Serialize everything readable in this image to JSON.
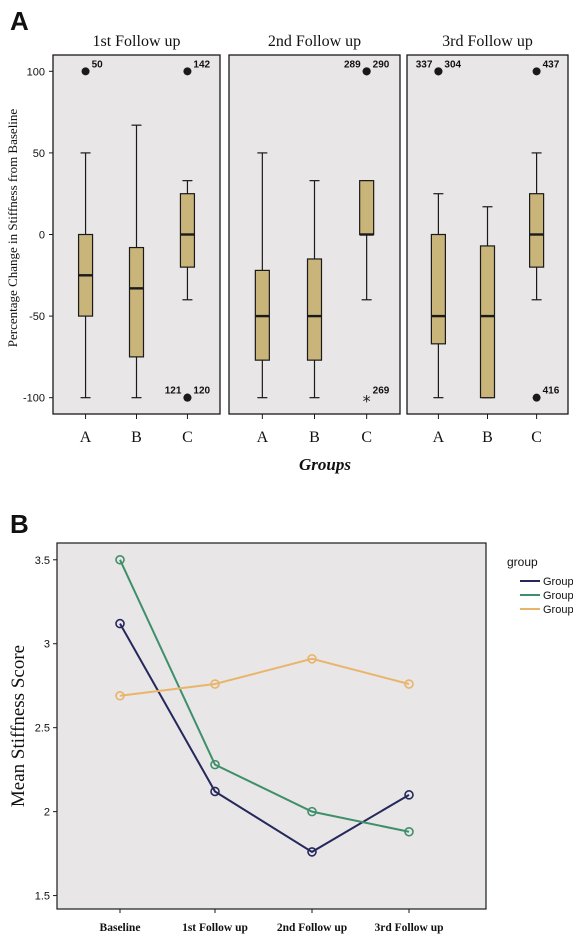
{
  "chart_data": [
    {
      "type": "box",
      "panel_label": "A",
      "ylabel": "Percentage Change in Stiffness from Baseline",
      "xlabel": "Groups",
      "ylim": [
        -110,
        110
      ],
      "yticks": [
        100,
        50,
        0,
        -50,
        -100
      ],
      "tick_labels": [
        "100",
        "50",
        "0",
        "-50",
        "-100"
      ],
      "facets": [
        {
          "title": "1st Follow up",
          "categories": [
            "A",
            "B",
            "C"
          ],
          "boxes": [
            {
              "group": "A",
              "min": -100,
              "q1": -50,
              "median": -25,
              "q3": 0,
              "max": 50
            },
            {
              "group": "B",
              "min": -100,
              "q1": -75,
              "median": -33,
              "q3": -8,
              "max": 67
            },
            {
              "group": "C",
              "min": -40,
              "q1": -20,
              "median": 0,
              "q3": 25,
              "max": 33
            }
          ],
          "outliers": [
            {
              "group": "A",
              "value": 100,
              "symbol": "circle",
              "label": "50",
              "label_side": "right"
            },
            {
              "group": "C",
              "value": 100,
              "symbol": "circle",
              "label": "142",
              "label_side": "right"
            },
            {
              "group": "C",
              "value": -100,
              "symbol": "circle",
              "label": "121",
              "label_side": "left"
            },
            {
              "group": "C",
              "value": -100,
              "symbol": "circle",
              "label": "120",
              "label_side": "right"
            }
          ]
        },
        {
          "title": "2nd Follow up",
          "categories": [
            "A",
            "B",
            "C"
          ],
          "boxes": [
            {
              "group": "A",
              "min": -100,
              "q1": -77,
              "median": -50,
              "q3": -22,
              "max": 50
            },
            {
              "group": "B",
              "min": -100,
              "q1": -77,
              "median": -50,
              "q3": -15,
              "max": 33
            },
            {
              "group": "C",
              "min": -40,
              "q1": 0,
              "median": 0,
              "q3": 33,
              "max": 33
            }
          ],
          "outliers": [
            {
              "group": "C",
              "value": 100,
              "symbol": "circle",
              "label": "289",
              "label_side": "left"
            },
            {
              "group": "C",
              "value": 100,
              "symbol": "circle",
              "label": "290",
              "label_side": "right"
            },
            {
              "group": "C",
              "value": -100,
              "symbol": "star",
              "label": "269",
              "label_side": "right"
            }
          ]
        },
        {
          "title": "3rd Follow up",
          "categories": [
            "A",
            "B",
            "C"
          ],
          "boxes": [
            {
              "group": "A",
              "min": -100,
              "q1": -67,
              "median": -50,
              "q3": 0,
              "max": 25
            },
            {
              "group": "B",
              "min": -100,
              "q1": -100,
              "median": -50,
              "q3": -7,
              "max": 17
            },
            {
              "group": "C",
              "min": -40,
              "q1": -20,
              "median": 0,
              "q3": 25,
              "max": 50
            }
          ],
          "outliers": [
            {
              "group": "A",
              "value": 100,
              "symbol": "circle",
              "label": "337",
              "label_side": "left"
            },
            {
              "group": "A",
              "value": 100,
              "symbol": "circle",
              "label": "304",
              "label_side": "right"
            },
            {
              "group": "C",
              "value": 100,
              "symbol": "circle",
              "label": "437",
              "label_side": "right"
            },
            {
              "group": "C",
              "value": -100,
              "symbol": "circle",
              "label": "416",
              "label_side": "right"
            }
          ]
        }
      ],
      "colors": {
        "box": "#c9b47a",
        "panel_bg": "#e8e6e6",
        "ink": "#1a1a1a"
      }
    },
    {
      "type": "line",
      "panel_label": "B",
      "ylabel": "Mean Stiffness Score",
      "categories": [
        "Baseline",
        "1st Follow up",
        "2nd Follow up",
        "3rd Follow up"
      ],
      "ylim": [
        1.42,
        3.6
      ],
      "yticks": [
        1.5,
        2,
        2.5,
        3,
        3.5
      ],
      "tick_labels": [
        "1.5",
        "2",
        "2.5",
        "3",
        "3.5"
      ],
      "legend_title": "group",
      "legend_position": "right",
      "series": [
        {
          "name": "Group",
          "color": "#25285c",
          "values": [
            3.12,
            2.12,
            1.76,
            2.1
          ]
        },
        {
          "name": "Group",
          "color": "#3f8f6b",
          "values": [
            3.5,
            2.28,
            2.0,
            1.88
          ]
        },
        {
          "name": "Group",
          "color": "#e8b56a",
          "values": [
            2.69,
            2.76,
            2.91,
            2.76
          ]
        }
      ],
      "colors": {
        "panel_bg": "#e8e6e6",
        "ink": "#1a1a1a"
      }
    }
  ]
}
